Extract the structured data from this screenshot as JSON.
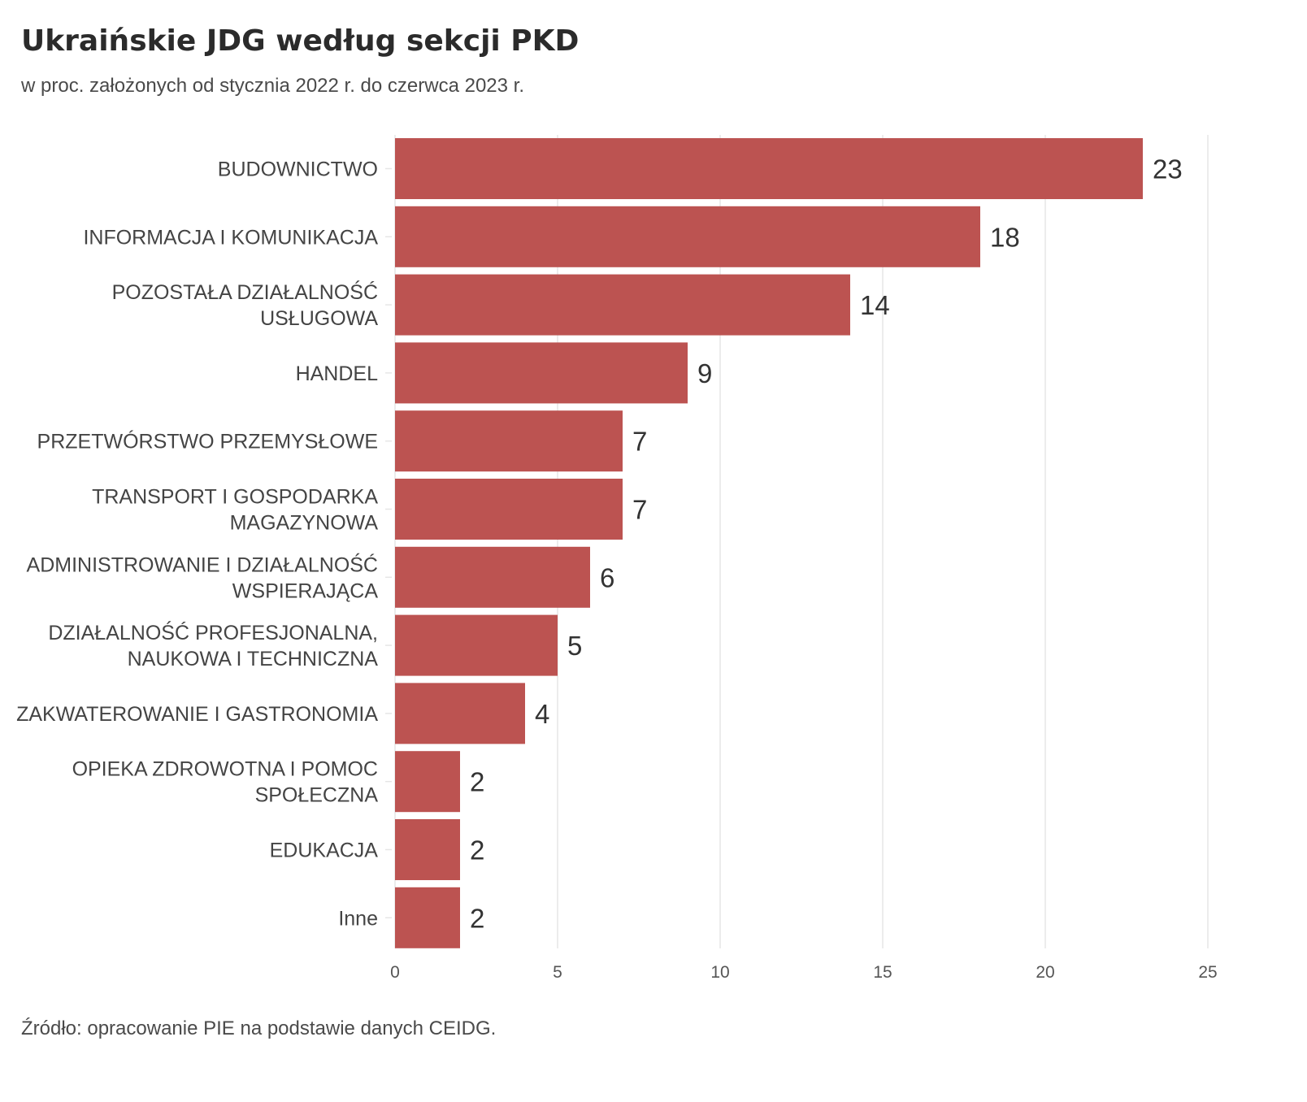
{
  "chart": {
    "title": "Ukraińskie JDG według sekcji PKD",
    "subtitle": "w proc. założonych od stycznia 2022 r. do czerwca 2023 r.",
    "source": "Źródło: opracowanie PIE na podstawie danych CEIDG."
  },
  "chart_data": {
    "type": "bar",
    "orientation": "horizontal",
    "title": "Ukraińskie JDG według sekcji PKD",
    "subtitle": "w proc. założonych od stycznia 2022 r. do czerwca 2023 r.",
    "categories": [
      "BUDOWNICTWO",
      "INFORMACJA I KOMUNIKACJA",
      "POZOSTAŁA DZIAŁALNOŚĆ USŁUGOWA",
      "HANDEL",
      "PRZETWÓRSTWO PRZEMYSŁOWE",
      "TRANSPORT I GOSPODARKA MAGAZYNOWA",
      "ADMINISTROWANIE I DZIAŁALNOŚĆ WSPIERAJĄCA",
      "DZIAŁALNOŚĆ PROFESJONALNA, NAUKOWA I TECHNICZNA",
      "ZAKWATEROWANIE I GASTRONOMIA",
      "OPIEKA ZDROWOTNA I POMOC SPOŁECZNA",
      "EDUKACJA",
      "Inne"
    ],
    "category_lines": [
      [
        "BUDOWNICTWO"
      ],
      [
        "INFORMACJA I KOMUNIKACJA"
      ],
      [
        "POZOSTAŁA DZIAŁALNOŚĆ",
        "USŁUGOWA"
      ],
      [
        "HANDEL"
      ],
      [
        "PRZETWÓRSTWO PRZEMYSŁOWE"
      ],
      [
        "TRANSPORT I GOSPODARKA",
        "MAGAZYNOWA"
      ],
      [
        "ADMINISTROWANIE I DZIAŁALNOŚĆ",
        "WSPIERAJĄCA"
      ],
      [
        "DZIAŁALNOŚĆ PROFESJONALNA,",
        "NAUKOWA I TECHNICZNA"
      ],
      [
        "ZAKWATEROWANIE I GASTRONOMIA"
      ],
      [
        "OPIEKA ZDROWOTNA I POMOC",
        "SPOŁECZNA"
      ],
      [
        "EDUKACJA"
      ],
      [
        "Inne"
      ]
    ],
    "values": [
      23,
      18,
      14,
      9,
      7,
      7,
      6,
      5,
      4,
      2,
      2,
      2
    ],
    "value_labels": [
      "23",
      "18",
      "14",
      "9",
      "7",
      "7",
      "6",
      "5",
      "4",
      "2",
      "2",
      "2"
    ],
    "xlim": [
      0,
      25
    ],
    "xticks": [
      0,
      5,
      10,
      15,
      20,
      25
    ],
    "xtick_labels": [
      "0",
      "5",
      "10",
      "15",
      "20",
      "25"
    ],
    "xlabel": "",
    "ylabel": "",
    "grid": true,
    "legend": "none",
    "bar_color": "#bc5351",
    "grid_color": "#e6e6e6"
  }
}
